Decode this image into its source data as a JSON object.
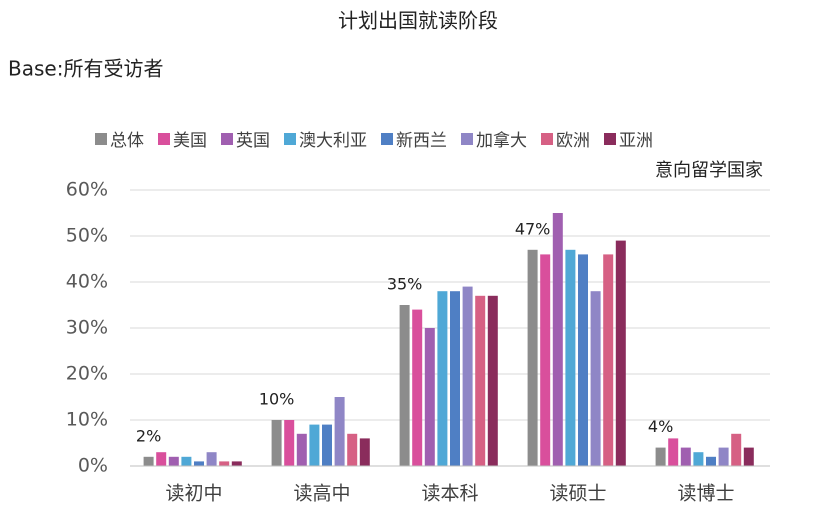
{
  "chart_data": {
    "type": "bar",
    "title": "计划出国就读阶段",
    "subtitle": "Base:所有受访者",
    "annotation": "意向留学国家",
    "categories": [
      "读初中",
      "读高中",
      "读本科",
      "读硕士",
      "读博士"
    ],
    "series": [
      {
        "name": "总体",
        "color": "#8c8c8c",
        "values": [
          2,
          10,
          35,
          47,
          4
        ],
        "value_labels": [
          "2%",
          "10%",
          "35%",
          "47%",
          "4%"
        ]
      },
      {
        "name": "美国",
        "color": "#d94f9c",
        "values": [
          3,
          10,
          34,
          46,
          6
        ]
      },
      {
        "name": "英国",
        "color": "#a05fb0",
        "values": [
          2,
          7,
          30,
          55,
          4
        ]
      },
      {
        "name": "澳大利亚",
        "color": "#4fa8d6",
        "values": [
          2,
          9,
          38,
          47,
          3
        ]
      },
      {
        "name": "新西兰",
        "color": "#4f7fc4",
        "values": [
          1,
          9,
          38,
          46,
          2
        ]
      },
      {
        "name": "加拿大",
        "color": "#8f86c6",
        "values": [
          3,
          15,
          39,
          38,
          4
        ]
      },
      {
        "name": "欧洲",
        "color": "#d66084",
        "values": [
          1,
          7,
          37,
          46,
          7
        ]
      },
      {
        "name": "亚洲",
        "color": "#8a2c5c",
        "values": [
          1,
          6,
          37,
          49,
          4
        ]
      }
    ],
    "ylim": [
      0,
      60
    ],
    "yticks": [
      {
        "value": 0,
        "label": "0%"
      },
      {
        "value": 10,
        "label": "10%"
      },
      {
        "value": 20,
        "label": "20%"
      },
      {
        "value": 30,
        "label": "30%"
      },
      {
        "value": 40,
        "label": "40%"
      },
      {
        "value": 50,
        "label": "50%"
      },
      {
        "value": 60,
        "label": "60%"
      }
    ],
    "grid": true
  }
}
